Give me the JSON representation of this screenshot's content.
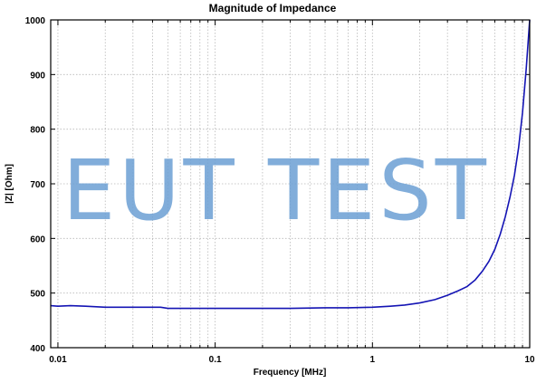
{
  "chart_data": {
    "type": "line",
    "title": "Magnitude of Impedance",
    "xlabel": "Frequency [MHz]",
    "ylabel": "|Z| [Ohm]",
    "xscale": "log",
    "xlim": [
      0.009,
      10
    ],
    "ylim": [
      400,
      1000
    ],
    "grid": true,
    "x_ticks": [
      {
        "value": 0.01,
        "label": "0.01"
      },
      {
        "value": 0.1,
        "label": "0.1"
      },
      {
        "value": 1,
        "label": "1"
      },
      {
        "value": 10,
        "label": "10"
      }
    ],
    "y_ticks": [
      {
        "value": 400,
        "label": "400"
      },
      {
        "value": 500,
        "label": "500"
      },
      {
        "value": 600,
        "label": "600"
      },
      {
        "value": 700,
        "label": "700"
      },
      {
        "value": 800,
        "label": "800"
      },
      {
        "value": 900,
        "label": "900"
      },
      {
        "value": 1000,
        "label": "1000"
      }
    ],
    "series": [
      {
        "name": "|Z|",
        "color": "#1414b4",
        "x": [
          0.009,
          0.01,
          0.012,
          0.015,
          0.02,
          0.03,
          0.045,
          0.05,
          0.07,
          0.1,
          0.15,
          0.2,
          0.3,
          0.5,
          0.7,
          1.0,
          1.3,
          1.6,
          2.0,
          2.5,
          3.0,
          3.5,
          4.0,
          4.5,
          5.0,
          5.5,
          6.0,
          6.5,
          7.0,
          7.5,
          8.0,
          8.5,
          9.0,
          9.5,
          10.0
        ],
        "values": [
          477,
          476,
          477,
          476,
          474,
          474,
          474,
          472,
          472,
          472,
          472,
          472,
          472,
          473,
          473,
          474,
          476,
          478,
          482,
          488,
          496,
          504,
          512,
          524,
          540,
          558,
          580,
          608,
          640,
          676,
          716,
          766,
          830,
          910,
          1000
        ]
      }
    ],
    "watermark": "EUT TEST"
  }
}
